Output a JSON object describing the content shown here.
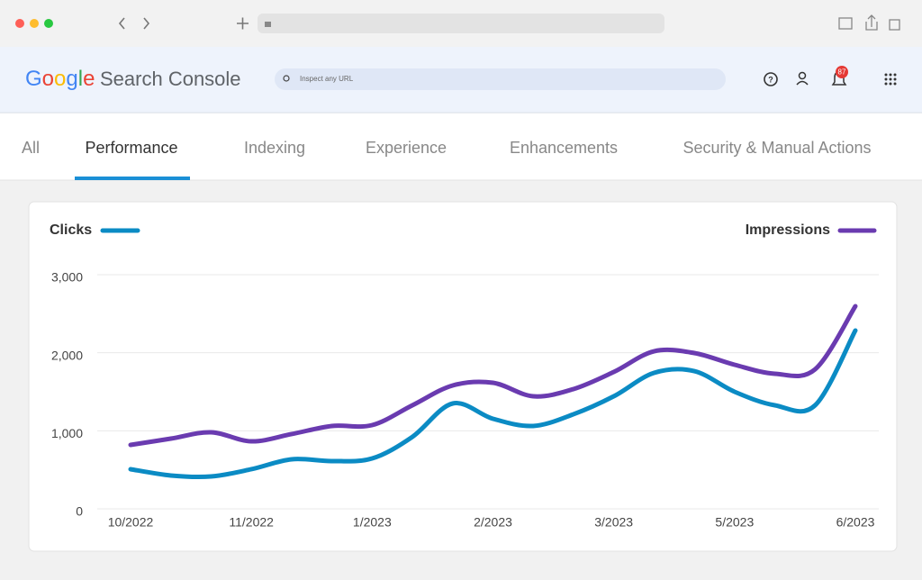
{
  "header": {
    "logo": "Google",
    "product": "Search Console",
    "search_placeholder": "Inspect any URL",
    "notification_count": "87"
  },
  "tabs": {
    "items": [
      "All",
      "Performance",
      "Indexing",
      "Experience",
      "Enhancements",
      "Security & Manual Actions"
    ],
    "active": 1
  },
  "chart_data": {
    "type": "line",
    "categories": [
      "10/2022",
      null,
      null,
      "11/2022",
      null,
      null,
      "1/2023",
      null,
      null,
      "2/2023",
      null,
      null,
      "3/2023",
      null,
      null,
      "5/2023",
      null,
      null,
      "6/2023"
    ],
    "series": [
      {
        "name": "Clicks",
        "color": "#0b8bc4",
        "values": [
          508,
          427,
          415,
          508,
          635,
          612,
          646,
          923,
          1350,
          1154,
          1062,
          1212,
          1442,
          1742,
          1765,
          1500,
          1327,
          1327,
          2285
        ]
      },
      {
        "name": "Impressions",
        "color": "#6a3bb0",
        "values": [
          819,
          900,
          981,
          865,
          958,
          1062,
          1073,
          1327,
          1581,
          1615,
          1442,
          1535,
          1754,
          2019,
          1996,
          1846,
          1731,
          1788,
          2596
        ]
      }
    ],
    "ylim": [
      0,
      3000
    ],
    "yticks": [
      0,
      {
        "value": 1000,
        "label": "1,000"
      },
      {
        "value": 2000,
        "label": "2,000"
      },
      {
        "value": 3000,
        "label": "3,000"
      }
    ],
    "grid": true
  }
}
